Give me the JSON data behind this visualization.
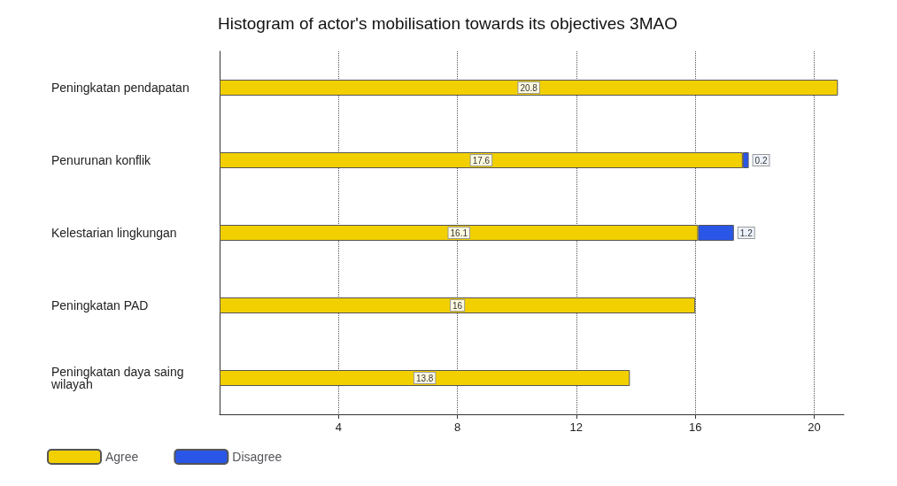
{
  "chart_data": {
    "type": "bar",
    "orientation": "horizontal",
    "stacked": true,
    "title": "Histogram of actor's mobilisation towards its objectives 3MAO",
    "categories": [
      "Peningkatan pendapatan",
      "Penurunan konflik",
      "Kelestarian lingkungan",
      "Peningkatan PAD",
      "Peningkatan daya saing wilayah"
    ],
    "series": [
      {
        "name": "Agree",
        "color": "#f2d000",
        "values": [
          20.8,
          17.6,
          16.1,
          16,
          13.8
        ]
      },
      {
        "name": "Disagree",
        "color": "#2a56e8",
        "values": [
          null,
          0.2,
          1.2,
          null,
          null
        ]
      }
    ],
    "xlim": [
      0,
      21
    ],
    "xticks": [
      4,
      8,
      12,
      16,
      20
    ],
    "grid": "x",
    "legend": "bottom left",
    "data_labels": true
  }
}
